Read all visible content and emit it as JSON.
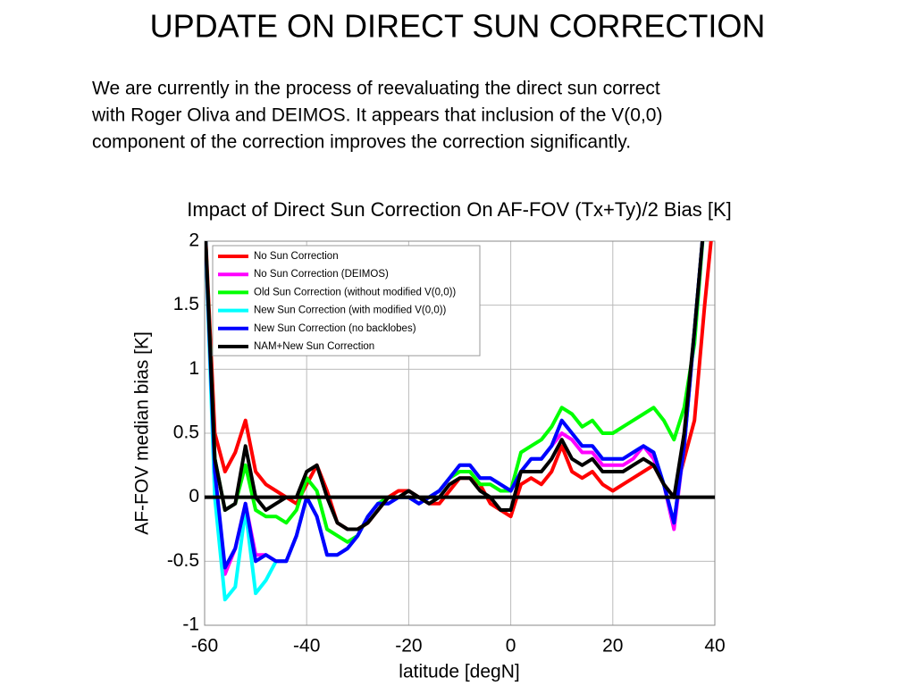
{
  "slide": {
    "title": "UPDATE ON DIRECT SUN CORRECTION",
    "body": [
      "We are currently in the process of reevaluating the direct sun correct",
      "with Roger Oliva and DEIMOS. It appears that inclusion of the V(0,0)",
      "component of the correction improves the correction significantly."
    ]
  },
  "chart_data": {
    "type": "line",
    "title": "Impact of Direct Sun Correction On AF-FOV (Tx+Ty)/2 Bias [K]",
    "xlabel": "latitude [degN]",
    "ylabel": "AF-FOV median bias [K]",
    "x": [
      -60,
      -58,
      -56,
      -54,
      -52,
      -50,
      -48,
      -46,
      -44,
      -42,
      -40,
      -38,
      -36,
      -34,
      -32,
      -30,
      -28,
      -26,
      -24,
      -22,
      -20,
      -18,
      -16,
      -14,
      -12,
      -10,
      -8,
      -6,
      -4,
      -2,
      0,
      2,
      4,
      6,
      8,
      10,
      12,
      14,
      16,
      18,
      20,
      22,
      24,
      26,
      28,
      30,
      32,
      34,
      36,
      38,
      40
    ],
    "series": [
      {
        "name": "No Sun Correction",
        "color": "#ff0000",
        "values": [
          2.2,
          0.5,
          0.2,
          0.35,
          0.6,
          0.2,
          0.1,
          0.05,
          0,
          -0.05,
          0.1,
          0.25,
          0.05,
          -0.2,
          -0.25,
          -0.25,
          -0.2,
          -0.1,
          0,
          0.05,
          0.05,
          0,
          -0.05,
          -0.05,
          0.05,
          0.15,
          0.15,
          0.1,
          -0.05,
          -0.1,
          -0.15,
          0.1,
          0.15,
          0.1,
          0.2,
          0.4,
          0.2,
          0.15,
          0.2,
          0.1,
          0.05,
          0.1,
          0.15,
          0.2,
          0.25,
          0.1,
          0,
          0.3,
          0.6,
          1.5,
          2.3
        ]
      },
      {
        "name": "No Sun Correction (DEIMOS)",
        "color": "#ff00ff",
        "values": [
          2.2,
          0.2,
          -0.6,
          -0.4,
          -0.05,
          -0.45,
          -0.45,
          -0.5,
          -0.5,
          -0.3,
          0,
          -0.15,
          -0.45,
          -0.45,
          -0.4,
          -0.3,
          -0.15,
          -0.05,
          -0.05,
          0,
          0,
          -0.05,
          0,
          0.05,
          0.15,
          0.25,
          0.25,
          0.15,
          0.15,
          0.1,
          0.05,
          0.2,
          0.3,
          0.3,
          0.4,
          0.5,
          0.45,
          0.35,
          0.35,
          0.25,
          0.25,
          0.25,
          0.3,
          0.4,
          0.3,
          0.1,
          -0.25,
          0.4,
          1.3,
          2.2,
          2.5
        ]
      },
      {
        "name": "Old Sun Correction (without modified V(0,0))",
        "color": "#00ff00",
        "values": [
          2.2,
          0.3,
          -0.1,
          -0.05,
          0.25,
          -0.1,
          -0.15,
          -0.15,
          -0.2,
          -0.1,
          0.15,
          0.05,
          -0.25,
          -0.3,
          -0.35,
          -0.3,
          -0.15,
          -0.05,
          0,
          0,
          0,
          -0.05,
          0,
          0.05,
          0.15,
          0.2,
          0.2,
          0.1,
          0.1,
          0.05,
          0.05,
          0.35,
          0.4,
          0.45,
          0.55,
          0.7,
          0.65,
          0.55,
          0.6,
          0.5,
          0.5,
          0.55,
          0.6,
          0.65,
          0.7,
          0.6,
          0.45,
          0.7,
          1.2,
          2.2,
          2.5
        ]
      },
      {
        "name": "New Sun Correction (with modified V(0,0))",
        "color": "#00ffff",
        "values": [
          2.2,
          0,
          -0.8,
          -0.7,
          -0.1,
          -0.75,
          -0.65,
          -0.5,
          -0.5,
          -0.3,
          0,
          -0.15,
          -0.45,
          -0.45,
          -0.4,
          -0.3,
          -0.15,
          -0.05,
          -0.05,
          0,
          0,
          -0.05,
          0,
          0.05,
          0.15,
          0.25,
          0.25,
          0.15,
          0.15,
          0.1,
          0.05,
          0.2,
          0.3,
          0.3,
          0.4,
          0.6,
          0.5,
          0.4,
          0.4,
          0.3,
          0.3,
          0.3,
          0.35,
          0.4,
          0.35,
          0.1,
          -0.2,
          0.4,
          1.3,
          2.2,
          2.5
        ]
      },
      {
        "name": "New Sun Correction (no backlobes)",
        "color": "#0000ff",
        "values": [
          2.2,
          0.2,
          -0.55,
          -0.4,
          -0.05,
          -0.5,
          -0.45,
          -0.5,
          -0.5,
          -0.3,
          0,
          -0.15,
          -0.45,
          -0.45,
          -0.4,
          -0.3,
          -0.15,
          -0.05,
          -0.05,
          0,
          0,
          -0.05,
          0,
          0.05,
          0.15,
          0.25,
          0.25,
          0.15,
          0.15,
          0.1,
          0.05,
          0.2,
          0.3,
          0.3,
          0.4,
          0.6,
          0.5,
          0.4,
          0.4,
          0.3,
          0.3,
          0.3,
          0.35,
          0.4,
          0.35,
          0.1,
          -0.2,
          0.4,
          1.3,
          2.2,
          2.5
        ]
      },
      {
        "name": "NAM+New Sun Correction",
        "color": "#000000",
        "values": [
          2.2,
          0.3,
          -0.1,
          -0.05,
          0.4,
          0,
          -0.1,
          -0.05,
          0,
          0,
          0.2,
          0.25,
          0,
          -0.2,
          -0.25,
          -0.25,
          -0.2,
          -0.1,
          0,
          0,
          0.05,
          0,
          -0.05,
          0,
          0.1,
          0.15,
          0.15,
          0.05,
          0,
          -0.1,
          -0.1,
          0.2,
          0.2,
          0.2,
          0.3,
          0.45,
          0.3,
          0.25,
          0.3,
          0.2,
          0.2,
          0.2,
          0.25,
          0.3,
          0.25,
          0.1,
          0,
          0.5,
          1.3,
          2.2,
          2.5
        ]
      }
    ],
    "xlim": [
      -60,
      40
    ],
    "xticks": [
      -60,
      -40,
      -20,
      0,
      20,
      40
    ],
    "ylim": [
      -1,
      2
    ],
    "yticks": [
      -1,
      -0.5,
      0,
      0.5,
      1,
      1.5,
      2
    ],
    "reference_line": 0,
    "grid": true,
    "legend": "upper left"
  }
}
